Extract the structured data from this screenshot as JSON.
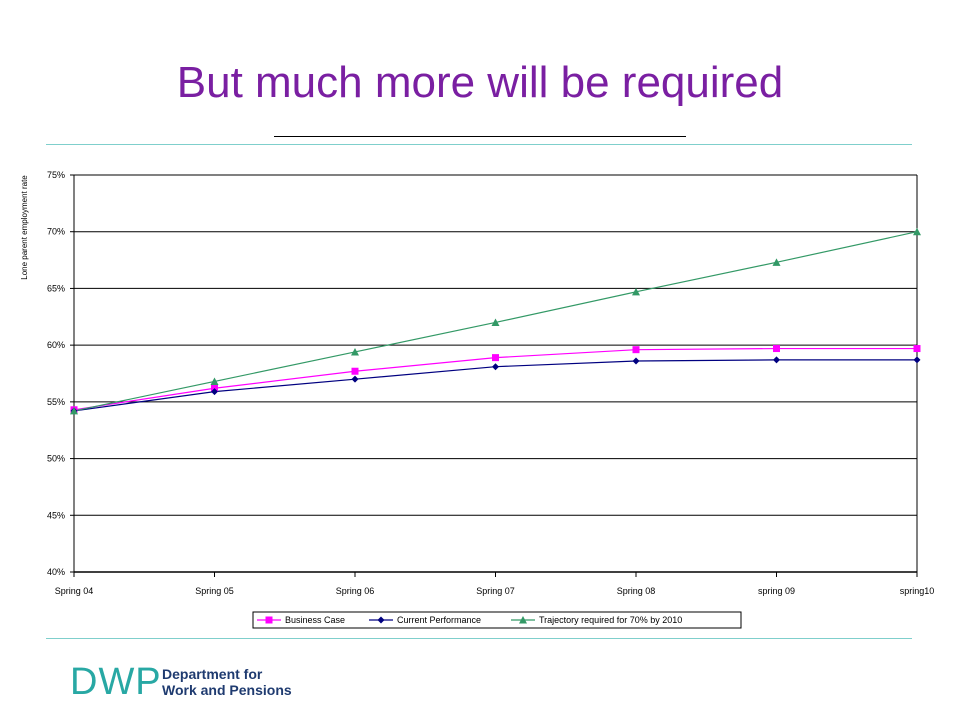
{
  "slide": {
    "title": "But much more will be required"
  },
  "logo": {
    "mark": "DWP",
    "line1": "Department for",
    "line2": "Work and Pensions",
    "color": "#28a8a4"
  },
  "chart_data": {
    "type": "line",
    "title": "",
    "xlabel": "",
    "ylabel": "Lone parent employment rate",
    "categories": [
      "Spring 04",
      "Spring 05",
      "Spring 06",
      "Spring 07",
      "Spring 08",
      "spring 09",
      "spring10"
    ],
    "y_ticks": [
      "40%",
      "45%",
      "50%",
      "55%",
      "60%",
      "65%",
      "70%",
      "75%"
    ],
    "ylim": [
      40,
      75
    ],
    "grid": true,
    "legend_position": "bottom",
    "series": [
      {
        "name": "Business Case",
        "color": "#ff00ff",
        "marker": "square",
        "values": [
          54.3,
          56.2,
          57.7,
          58.9,
          59.6,
          59.7,
          59.7
        ]
      },
      {
        "name": "Current Performance",
        "color": "#000080",
        "marker": "diamond",
        "values": [
          54.2,
          55.9,
          57.0,
          58.1,
          58.6,
          58.7,
          58.7
        ]
      },
      {
        "name": "Trajectory required for 70% by 2010",
        "color": "#339966",
        "marker": "triangle",
        "values": [
          54.2,
          56.8,
          59.4,
          62.0,
          64.7,
          67.3,
          70.0
        ]
      }
    ]
  }
}
